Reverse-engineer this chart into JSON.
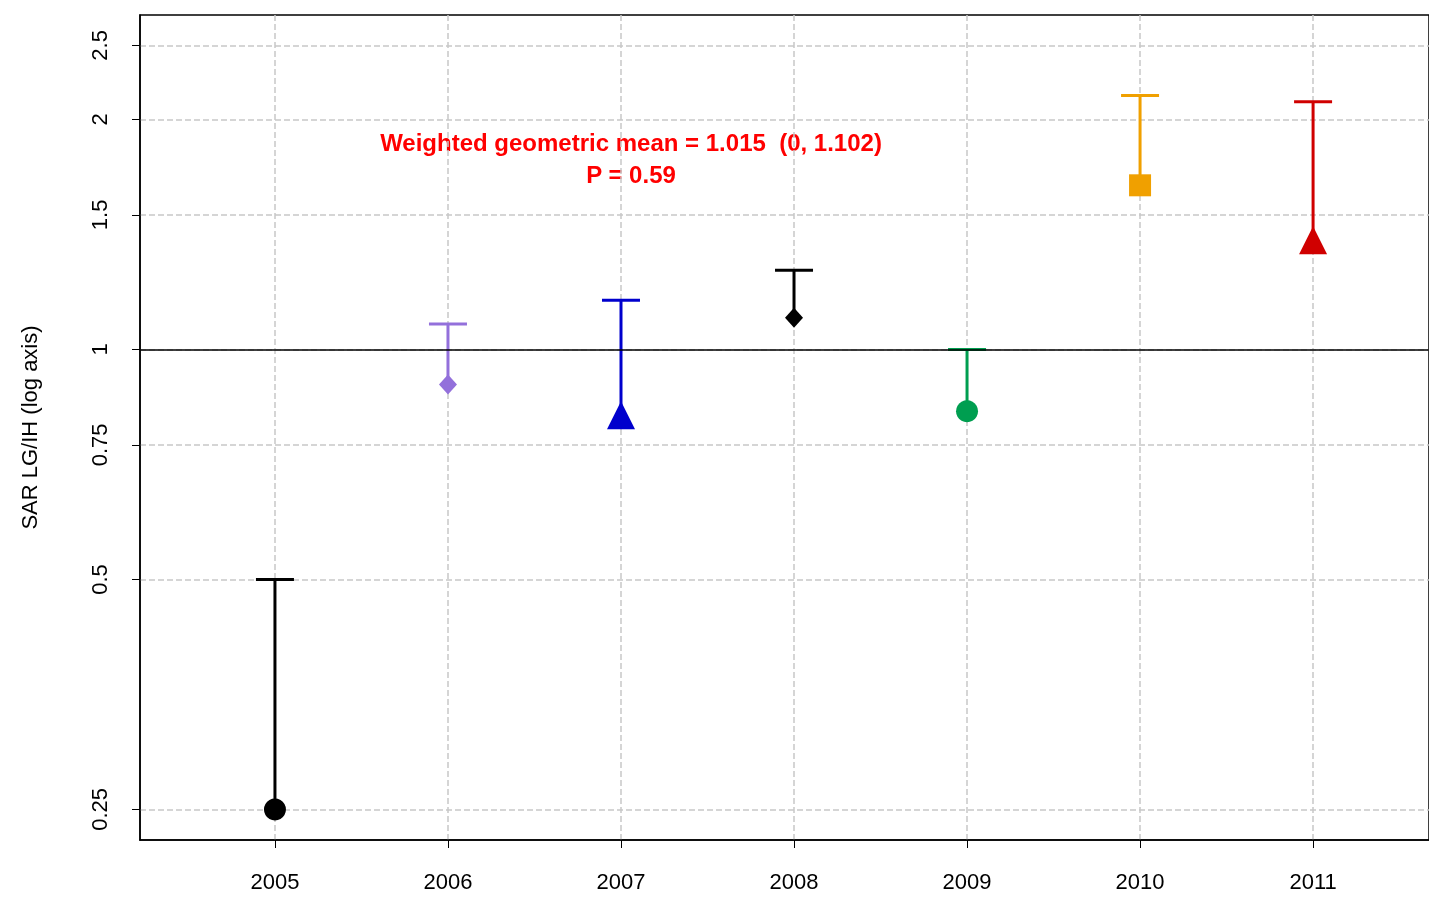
{
  "chart_data": {
    "type": "scatter",
    "ylabel": "SAR LG/IH (log axis)",
    "log": "y",
    "xlim": [
      2004.22,
      2011.67
    ],
    "xticks": [
      2005,
      2006,
      2007,
      2008,
      2009,
      2010,
      2011
    ],
    "ylim": [
      0.228,
      2.74
    ],
    "yticks": [
      0.25,
      0.5,
      0.75,
      1,
      1.5,
      2,
      2.5
    ],
    "grid": true,
    "series": [
      {
        "x": [
          2005
        ],
        "values": [
          0.25
        ],
        "errors": [
          [
            0.25,
            0.5
          ]
        ],
        "color": "#000000",
        "marker": "circle"
      },
      {
        "x": [
          2006
        ],
        "values": [
          0.9
        ],
        "errors": [
          [
            0.9,
            1.08
          ]
        ],
        "color": "#9370db",
        "marker": "diamond"
      },
      {
        "x": [
          2007
        ],
        "values": [
          0.82
        ],
        "errors": [
          [
            0.82,
            1.16
          ]
        ],
        "color": "#0000cd",
        "marker": "triangle"
      },
      {
        "x": [
          2008
        ],
        "values": [
          1.1
        ],
        "errors": [
          [
            1.1,
            1.27
          ]
        ],
        "color": "#000000",
        "marker": "diamond"
      },
      {
        "x": [
          2009
        ],
        "values": [
          0.83
        ],
        "errors": [
          [
            0.83,
            1.0
          ]
        ],
        "color": "#009e50",
        "marker": "circle"
      },
      {
        "x": [
          2010
        ],
        "values": [
          1.64
        ],
        "errors": [
          [
            1.64,
            2.15
          ]
        ],
        "color": "#f0a000",
        "marker": "square"
      },
      {
        "x": [
          2011
        ],
        "values": [
          1.39
        ],
        "errors": [
          [
            1.39,
            2.11
          ]
        ],
        "color": "#d00000",
        "marker": "triangle"
      }
    ],
    "ref_lines": [
      {
        "axis": "y",
        "value": 1,
        "color": "#000000",
        "line_style": "solid"
      }
    ],
    "annotations": [
      "Weighted geometric mean = 1.015  (0, 1.102)",
      "P = 0.59"
    ]
  }
}
